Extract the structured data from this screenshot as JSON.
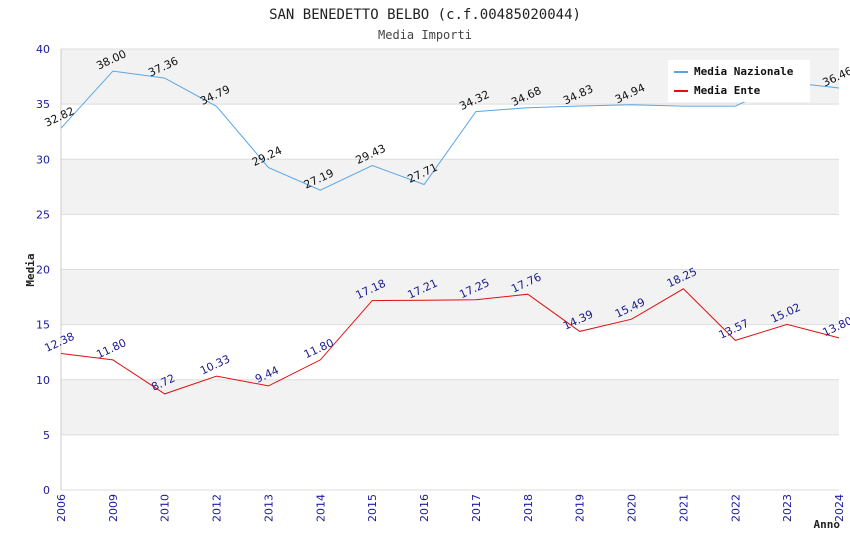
{
  "chart_data": {
    "type": "line",
    "title": "SAN BENEDETTO BELBO (c.f.00485020044)",
    "subtitle": "Media Importi",
    "xlabel": "Anno",
    "ylabel": "Media",
    "ylim": [
      0,
      40
    ],
    "yticks": [
      0,
      5,
      10,
      15,
      20,
      25,
      30,
      35,
      40
    ],
    "categories": [
      "2006",
      "2009",
      "2010",
      "2012",
      "2013",
      "2014",
      "2015",
      "2016",
      "2017",
      "2018",
      "2019",
      "2020",
      "2021",
      "2022",
      "2023",
      "2024"
    ],
    "legend_position": "top-right",
    "series": [
      {
        "name": "Media Nazionale",
        "color": "#5aa5e6",
        "label_color": "#111111",
        "values": [
          32.82,
          38.0,
          37.36,
          34.79,
          29.24,
          27.19,
          29.43,
          27.71,
          34.32,
          34.68,
          34.83,
          34.94,
          34.82,
          34.82,
          37.0,
          36.46
        ],
        "labels": [
          "32.82",
          "38.00",
          "37.36",
          "34.79",
          "29.24",
          "27.19",
          "29.43",
          "27.71",
          "34.32",
          "34.68",
          "34.83",
          "34.94",
          "",
          "",
          "",
          "36.46"
        ]
      },
      {
        "name": "Media Ente",
        "color": "#e01010",
        "label_color": "#1a1a8c",
        "values": [
          12.38,
          11.8,
          8.72,
          10.33,
          9.44,
          11.8,
          17.18,
          17.21,
          17.25,
          17.76,
          14.39,
          15.49,
          18.25,
          13.57,
          15.02,
          13.8
        ],
        "labels": [
          "12.38",
          "11.80",
          "8.72",
          "10.33",
          "9.44",
          "11.80",
          "17.18",
          "17.21",
          "17.25",
          "17.76",
          "14.39",
          "15.49",
          "18.25",
          "13.57",
          "15.02",
          "13.80"
        ]
      }
    ]
  }
}
